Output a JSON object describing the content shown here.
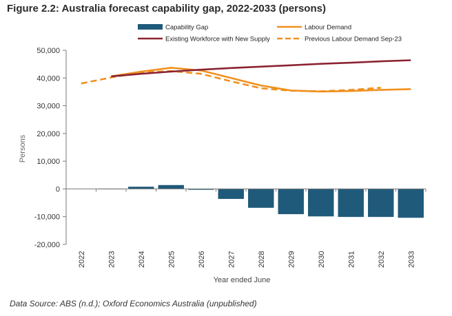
{
  "figure": {
    "title": "Figure 2.2: Australia forecast capability gap, 2022-2033 (persons)",
    "source": "Data Source: ABS (n.d.);  Oxford Economics Australia (unpublished)"
  },
  "colors": {
    "gap_bar": "#1f5a7a",
    "workforce": "#8b2332",
    "demand": "#f0901e",
    "axis": "#777777",
    "grid": "#cfcfcf"
  },
  "chart_data": {
    "type": "bar",
    "categories": [
      "2022",
      "2023",
      "2024",
      "2025",
      "2026",
      "2027",
      "2028",
      "2029",
      "2030",
      "2031",
      "2032",
      "2033"
    ],
    "xlabel": "Year ended June",
    "ylabel": "Persons",
    "ylim": [
      -20000,
      50000
    ],
    "yticks": [
      -20000,
      -10000,
      0,
      10000,
      20000,
      30000,
      40000,
      50000
    ],
    "ytick_labels": [
      "-20,000",
      "-10,000",
      "0",
      "10,000",
      "20,000",
      "30,000",
      "40,000",
      "50,000"
    ],
    "grid": false,
    "legend_position": "top",
    "series": [
      {
        "key": "gap",
        "name": "Capability Gap",
        "type": "bar",
        "values": [
          null,
          0,
          800,
          1400,
          -300,
          -3600,
          -6800,
          -9100,
          -9900,
          -10100,
          -10100,
          -10400
        ]
      },
      {
        "key": "demand",
        "name": "Labour Demand",
        "type": "line",
        "style": "solid",
        "values": [
          null,
          40600,
          42300,
          43700,
          42700,
          40000,
          37300,
          35500,
          35100,
          35300,
          35700,
          36000
        ]
      },
      {
        "key": "workforce",
        "name": "Existing Workforce with New Supply",
        "type": "line",
        "style": "solid",
        "values": [
          null,
          40600,
          41500,
          42300,
          43000,
          43600,
          44100,
          44600,
          45100,
          45500,
          46000,
          46400
        ]
      },
      {
        "key": "previous",
        "name": "Previous Labour Demand Sep-23",
        "type": "line",
        "style": "dashed",
        "values": [
          38000,
          40200,
          42000,
          42500,
          41500,
          38800,
          36300,
          35400,
          35200,
          35700,
          36500,
          null
        ]
      }
    ]
  }
}
